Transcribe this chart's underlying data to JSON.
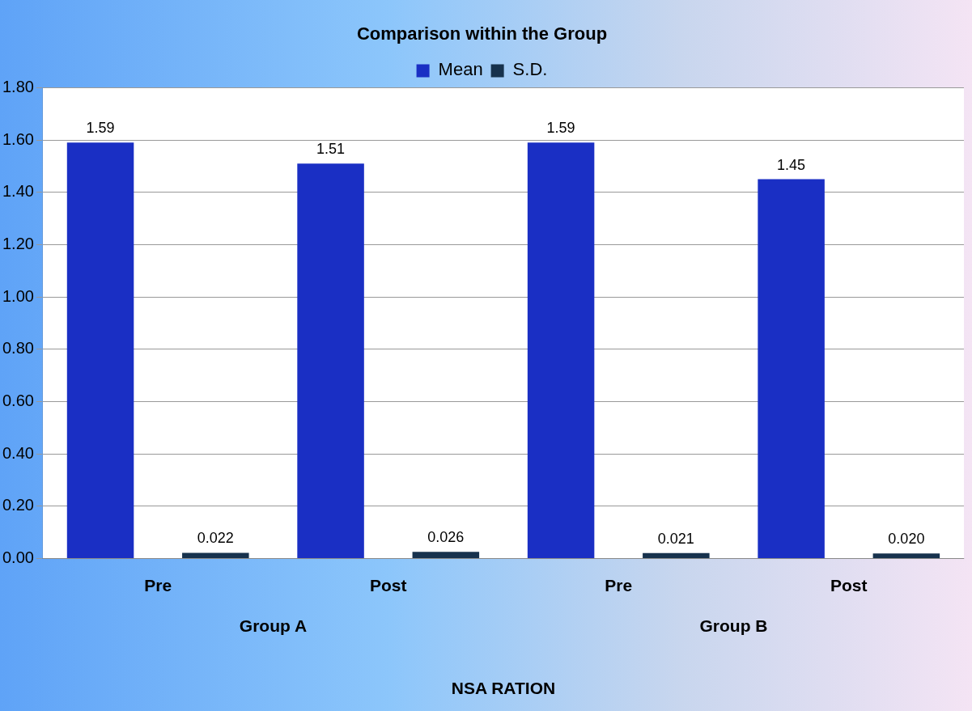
{
  "chart_data": {
    "type": "bar",
    "title": "Comparison within the Group",
    "xlabel": "NSA RATION",
    "categories": [
      "Pre",
      "Post",
      "Pre",
      "Post"
    ],
    "series": [
      {
        "name": "Mean",
        "color": "#1a2fc4",
        "values": [
          1.59,
          1.51,
          1.59,
          1.45
        ],
        "value_labels": [
          "1.59",
          "1.51",
          "1.59",
          "1.45"
        ]
      },
      {
        "name": "S.D.",
        "color": "#17324d",
        "values": [
          0.022,
          0.026,
          0.021,
          0.02
        ],
        "value_labels": [
          "0.022",
          "0.026",
          "0.021",
          "0.020"
        ]
      }
    ],
    "annotations": [
      "Group A",
      "Group B"
    ],
    "ylim": [
      0,
      1.8
    ],
    "yticks": [
      {
        "value": 0,
        "label": "0.00"
      },
      {
        "value": 0.2,
        "label": "0.20"
      },
      {
        "value": 0.4,
        "label": "0.40"
      },
      {
        "value": 0.6,
        "label": "0.60"
      },
      {
        "value": 0.8,
        "label": "0.80"
      },
      {
        "value": 1,
        "label": "1.00"
      },
      {
        "value": 1.2,
        "label": "1.20"
      },
      {
        "value": 1.4,
        "label": "1.40"
      },
      {
        "value": 1.6,
        "label": "1.60"
      },
      {
        "value": 1.8,
        "label": "1.80"
      }
    ],
    "grid": "y",
    "legend": "top"
  }
}
